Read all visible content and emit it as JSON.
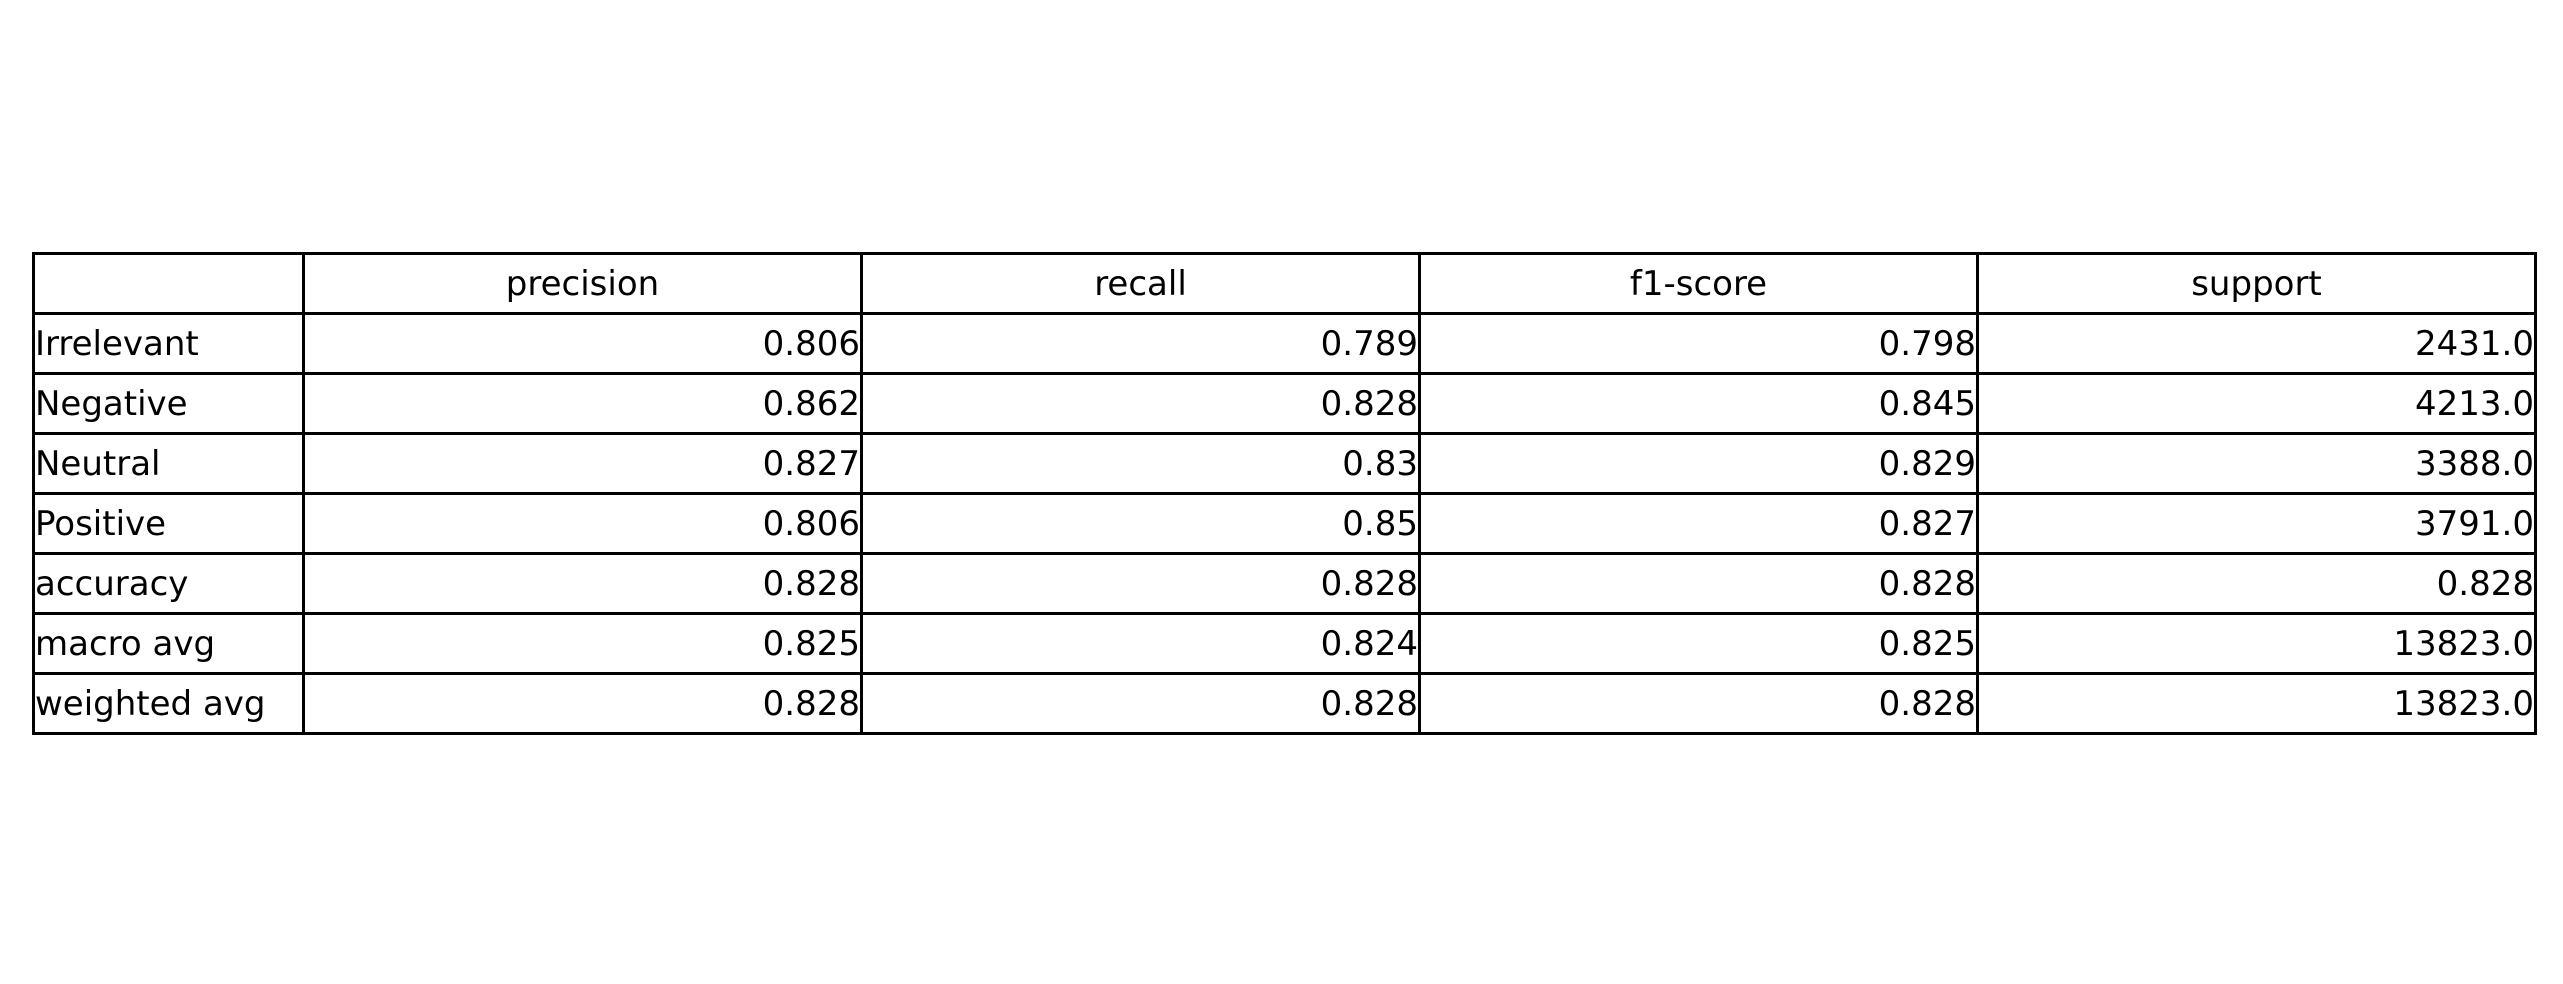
{
  "colors": {
    "background": "#ffffff",
    "border": "#000000",
    "text": "#000000"
  },
  "chart_data": {
    "type": "table",
    "title": "",
    "columns": [
      "precision",
      "recall",
      "f1-score",
      "support"
    ],
    "row_labels": [
      "Irrelevant",
      "Negative",
      "Neutral",
      "Positive",
      "accuracy",
      "macro avg",
      "weighted avg"
    ],
    "rows": [
      [
        "0.806",
        "0.789",
        "0.798",
        "2431.0"
      ],
      [
        "0.862",
        "0.828",
        "0.845",
        "4213.0"
      ],
      [
        "0.827",
        "0.83",
        "0.829",
        "3388.0"
      ],
      [
        "0.806",
        "0.85",
        "0.827",
        "3791.0"
      ],
      [
        "0.828",
        "0.828",
        "0.828",
        "0.828"
      ],
      [
        "0.825",
        "0.824",
        "0.825",
        "13823.0"
      ],
      [
        "0.828",
        "0.828",
        "0.828",
        "13823.0"
      ]
    ]
  }
}
